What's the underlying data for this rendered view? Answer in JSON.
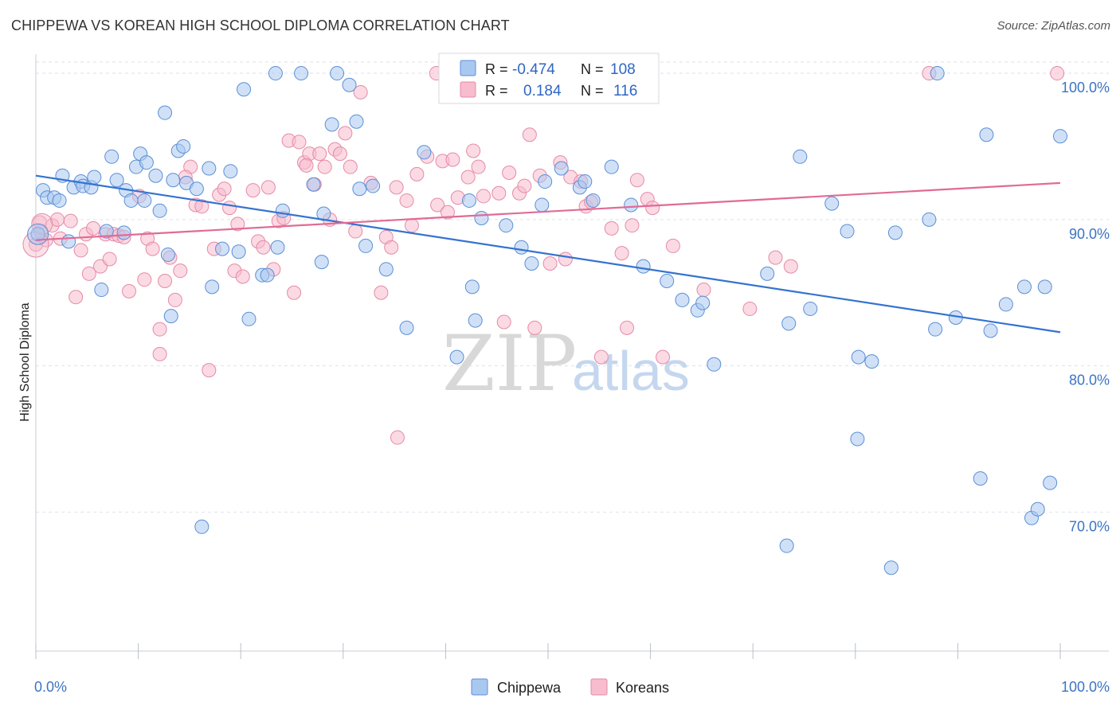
{
  "title": "CHIPPEWA VS KOREAN HIGH SCHOOL DIPLOMA CORRELATION CHART",
  "source": "Source: ZipAtlas.com",
  "watermark": {
    "zip": "ZIP",
    "atlas": "atlas"
  },
  "colors": {
    "chippewa_fill": "#a9c8f0",
    "chippewa_stroke": "#5b8fd6",
    "chippewa_line": "#3573d0",
    "koreans_fill": "#f7bccd",
    "koreans_stroke": "#e68aa7",
    "koreans_line": "#e06b96",
    "tick_text": "#3b74c4",
    "grid": "#dde2ea"
  },
  "legend": {
    "r_label": "R =",
    "n_label": "N =",
    "items": [
      {
        "series": "Chippewa",
        "r": "-0.474",
        "n": "108"
      },
      {
        "series": "Koreans",
        "r": "0.184",
        "n": "116"
      }
    ]
  },
  "chart_data": {
    "type": "scatter",
    "title": "CHIPPEWA VS KOREAN HIGH SCHOOL DIPLOMA CORRELATION CHART",
    "xlabel": "",
    "ylabel": "High School Diploma",
    "xlim": [
      0,
      100
    ],
    "ylim": [
      60.5,
      101.2
    ],
    "x_tick_labels": [
      "0.0%",
      "100.0%"
    ],
    "y_ticks": [
      70,
      80,
      90,
      100
    ],
    "y_tick_labels": [
      "70.0%",
      "80.0%",
      "90.0%",
      "100.0%"
    ],
    "grid": true,
    "legend_position": "top-center",
    "series": [
      {
        "name": "Chippewa",
        "trend": {
          "x": [
            0,
            100
          ],
          "y": [
            93.0,
            82.3
          ]
        },
        "points": [
          [
            0.2,
            89.0
          ],
          [
            0.7,
            92.0
          ],
          [
            1.1,
            91.5
          ],
          [
            1.8,
            91.5
          ],
          [
            2.3,
            91.3
          ],
          [
            2.6,
            93.0
          ],
          [
            3.2,
            88.5
          ],
          [
            3.7,
            92.2
          ],
          [
            4.4,
            92.6
          ],
          [
            4.6,
            92.3
          ],
          [
            5.4,
            92.2
          ],
          [
            5.7,
            92.9
          ],
          [
            6.4,
            85.2
          ],
          [
            6.9,
            89.2
          ],
          [
            7.4,
            94.3
          ],
          [
            7.9,
            92.7
          ],
          [
            8.6,
            89.1
          ],
          [
            8.8,
            92.0
          ],
          [
            9.3,
            91.3
          ],
          [
            9.8,
            93.6
          ],
          [
            10.2,
            94.5
          ],
          [
            10.6,
            91.3
          ],
          [
            10.8,
            93.9
          ],
          [
            11.7,
            93.0
          ],
          [
            12.1,
            90.6
          ],
          [
            12.6,
            97.3
          ],
          [
            12.9,
            87.6
          ],
          [
            13.2,
            83.4
          ],
          [
            13.4,
            92.7
          ],
          [
            13.9,
            94.7
          ],
          [
            14.4,
            95.0
          ],
          [
            14.7,
            92.5
          ],
          [
            15.7,
            92.1
          ],
          [
            16.2,
            69.0
          ],
          [
            16.9,
            93.5
          ],
          [
            17.2,
            85.4
          ],
          [
            18.2,
            88.0
          ],
          [
            19.0,
            93.3
          ],
          [
            19.8,
            87.8
          ],
          [
            20.3,
            98.9
          ],
          [
            20.8,
            83.2
          ],
          [
            22.1,
            86.2
          ],
          [
            22.6,
            86.2
          ],
          [
            23.4,
            100.0
          ],
          [
            23.6,
            88.1
          ],
          [
            24.1,
            90.6
          ],
          [
            25.9,
            100.0
          ],
          [
            27.1,
            92.4
          ],
          [
            27.9,
            87.1
          ],
          [
            28.1,
            90.4
          ],
          [
            28.9,
            96.5
          ],
          [
            29.4,
            100.0
          ],
          [
            30.6,
            99.2
          ],
          [
            31.3,
            96.7
          ],
          [
            31.6,
            92.1
          ],
          [
            32.2,
            88.2
          ],
          [
            32.9,
            92.3
          ],
          [
            34.2,
            86.6
          ],
          [
            36.2,
            82.6
          ],
          [
            37.9,
            94.6
          ],
          [
            41.1,
            80.6
          ],
          [
            42.3,
            91.3
          ],
          [
            42.6,
            85.4
          ],
          [
            42.9,
            83.1
          ],
          [
            43.5,
            90.1
          ],
          [
            45.9,
            89.6
          ],
          [
            47.4,
            88.1
          ],
          [
            48.4,
            87.0
          ],
          [
            49.4,
            91.0
          ],
          [
            49.7,
            92.6
          ],
          [
            51.3,
            93.5
          ],
          [
            53.1,
            92.2
          ],
          [
            53.6,
            92.6
          ],
          [
            54.4,
            91.3
          ],
          [
            56.2,
            93.6
          ],
          [
            58.1,
            91.0
          ],
          [
            59.3,
            86.8
          ],
          [
            61.6,
            85.8
          ],
          [
            63.1,
            84.5
          ],
          [
            64.6,
            83.8
          ],
          [
            65.1,
            84.3
          ],
          [
            66.2,
            80.1
          ],
          [
            71.4,
            86.3
          ],
          [
            73.5,
            82.9
          ],
          [
            74.6,
            94.3
          ],
          [
            75.6,
            83.9
          ],
          [
            77.7,
            91.1
          ],
          [
            79.2,
            89.2
          ],
          [
            80.2,
            75.0
          ],
          [
            80.3,
            80.6
          ],
          [
            81.6,
            80.3
          ],
          [
            83.9,
            89.1
          ],
          [
            83.5,
            66.2
          ],
          [
            87.2,
            90.0
          ],
          [
            87.8,
            82.5
          ],
          [
            88.0,
            100.0
          ],
          [
            89.8,
            83.3
          ],
          [
            92.2,
            72.3
          ],
          [
            92.8,
            95.8
          ],
          [
            93.2,
            82.4
          ],
          [
            94.7,
            84.2
          ],
          [
            96.5,
            85.4
          ],
          [
            97.2,
            69.6
          ],
          [
            97.8,
            70.2
          ],
          [
            98.5,
            85.4
          ],
          [
            99.0,
            72.0
          ],
          [
            100.0,
            95.7
          ],
          [
            73.3,
            67.7
          ]
        ]
      },
      {
        "name": "Koreans",
        "trend": {
          "x": [
            0,
            100
          ],
          "y": [
            88.6,
            92.5
          ]
        },
        "points": [
          [
            0.0,
            88.3
          ],
          [
            0.4,
            89.8
          ],
          [
            1.0,
            88.6
          ],
          [
            1.6,
            89.6
          ],
          [
            2.1,
            90.0
          ],
          [
            2.4,
            88.7
          ],
          [
            3.4,
            89.9
          ],
          [
            3.9,
            84.7
          ],
          [
            4.4,
            87.9
          ],
          [
            4.9,
            89.0
          ],
          [
            5.2,
            86.3
          ],
          [
            5.6,
            89.4
          ],
          [
            6.3,
            86.8
          ],
          [
            6.8,
            89.0
          ],
          [
            7.2,
            87.3
          ],
          [
            7.6,
            89.0
          ],
          [
            8.1,
            88.9
          ],
          [
            8.6,
            88.8
          ],
          [
            9.1,
            85.1
          ],
          [
            10.1,
            91.6
          ],
          [
            10.6,
            85.9
          ],
          [
            10.9,
            88.7
          ],
          [
            11.4,
            88.0
          ],
          [
            12.1,
            82.5
          ],
          [
            12.1,
            80.8
          ],
          [
            12.6,
            85.8
          ],
          [
            13.1,
            87.4
          ],
          [
            13.6,
            84.5
          ],
          [
            14.1,
            86.5
          ],
          [
            15.1,
            93.6
          ],
          [
            15.6,
            91.0
          ],
          [
            16.2,
            90.9
          ],
          [
            16.9,
            79.7
          ],
          [
            17.4,
            88.0
          ],
          [
            17.9,
            91.7
          ],
          [
            18.4,
            92.1
          ],
          [
            18.9,
            90.8
          ],
          [
            19.4,
            86.5
          ],
          [
            19.7,
            89.7
          ],
          [
            20.2,
            86.1
          ],
          [
            21.2,
            92.0
          ],
          [
            21.7,
            88.5
          ],
          [
            22.2,
            88.1
          ],
          [
            22.7,
            92.2
          ],
          [
            23.2,
            86.6
          ],
          [
            23.7,
            89.9
          ],
          [
            24.2,
            90.1
          ],
          [
            24.7,
            95.4
          ],
          [
            25.2,
            85.0
          ],
          [
            25.7,
            95.3
          ],
          [
            26.2,
            93.9
          ],
          [
            26.7,
            94.5
          ],
          [
            27.2,
            92.4
          ],
          [
            27.7,
            94.5
          ],
          [
            28.2,
            93.6
          ],
          [
            28.7,
            90.0
          ],
          [
            29.2,
            94.8
          ],
          [
            29.7,
            94.5
          ],
          [
            30.2,
            95.9
          ],
          [
            30.7,
            93.6
          ],
          [
            31.2,
            89.2
          ],
          [
            31.7,
            98.7
          ],
          [
            32.7,
            92.5
          ],
          [
            33.7,
            85.0
          ],
          [
            34.2,
            88.8
          ],
          [
            34.7,
            88.1
          ],
          [
            35.2,
            92.2
          ],
          [
            36.2,
            91.3
          ],
          [
            36.7,
            89.6
          ],
          [
            37.2,
            93.1
          ],
          [
            38.2,
            94.3
          ],
          [
            39.2,
            91.0
          ],
          [
            39.7,
            94.0
          ],
          [
            40.2,
            90.5
          ],
          [
            40.7,
            94.1
          ],
          [
            41.2,
            91.5
          ],
          [
            42.2,
            92.9
          ],
          [
            42.7,
            94.7
          ],
          [
            43.2,
            93.6
          ],
          [
            43.7,
            91.6
          ],
          [
            45.2,
            91.8
          ],
          [
            45.7,
            83.0
          ],
          [
            46.2,
            93.2
          ],
          [
            47.2,
            91.8
          ],
          [
            47.7,
            92.3
          ],
          [
            48.2,
            95.8
          ],
          [
            48.7,
            82.6
          ],
          [
            49.2,
            93.0
          ],
          [
            50.2,
            87.0
          ],
          [
            51.2,
            93.9
          ],
          [
            51.7,
            87.3
          ],
          [
            52.2,
            92.9
          ],
          [
            53.2,
            92.6
          ],
          [
            53.7,
            90.9
          ],
          [
            54.2,
            91.2
          ],
          [
            55.2,
            80.6
          ],
          [
            56.2,
            89.4
          ],
          [
            57.2,
            87.7
          ],
          [
            57.7,
            82.6
          ],
          [
            58.2,
            89.6
          ],
          [
            58.7,
            92.7
          ],
          [
            59.7,
            91.4
          ],
          [
            60.2,
            90.8
          ],
          [
            61.2,
            80.6
          ],
          [
            62.2,
            88.2
          ],
          [
            65.2,
            85.2
          ],
          [
            69.7,
            83.9
          ],
          [
            72.2,
            87.4
          ],
          [
            73.7,
            86.8
          ],
          [
            87.2,
            100.0
          ],
          [
            99.7,
            100.0
          ],
          [
            0.5,
            89.2
          ],
          [
            35.3,
            75.1
          ],
          [
            39.1,
            100.0
          ],
          [
            26.4,
            93.7
          ],
          [
            14.6,
            92.9
          ]
        ]
      }
    ]
  },
  "bottom_legend": [
    {
      "label": "Chippewa"
    },
    {
      "label": "Koreans"
    }
  ]
}
